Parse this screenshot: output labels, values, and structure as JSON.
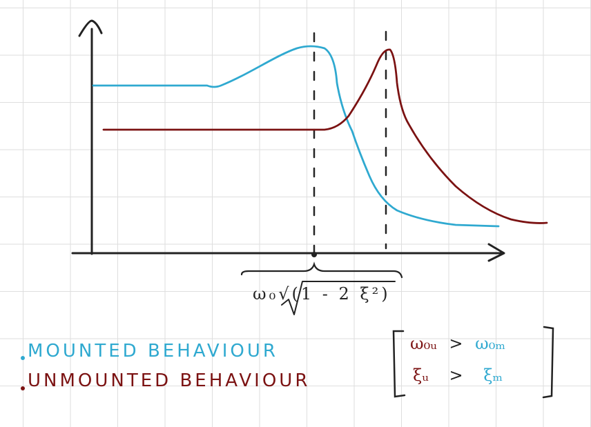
{
  "colors": {
    "axis": "#222222",
    "mounted": "#2fa9d0",
    "unmounted": "#7b1212"
  },
  "curves": [
    {
      "name": "mounted",
      "color_key": "mounted"
    },
    {
      "name": "unmounted",
      "color_key": "unmounted"
    }
  ],
  "annotation": {
    "resonance_formula": "ω₀√(1 - 2 ξ²)"
  },
  "legend": {
    "items": [
      {
        "label": "MOUNTED BEHAVIOUR",
        "color_key": "mounted"
      },
      {
        "label": "UNMOUNTED BEHAVIOUR",
        "color_key": "unmounted"
      }
    ]
  },
  "relations": {
    "row1": {
      "left": "ω₀ᵤ",
      "op": ">",
      "right": "ω₀ₘ"
    },
    "row2": {
      "left": "ξᵤ",
      "op": ">",
      "right": "ξₘ"
    }
  }
}
